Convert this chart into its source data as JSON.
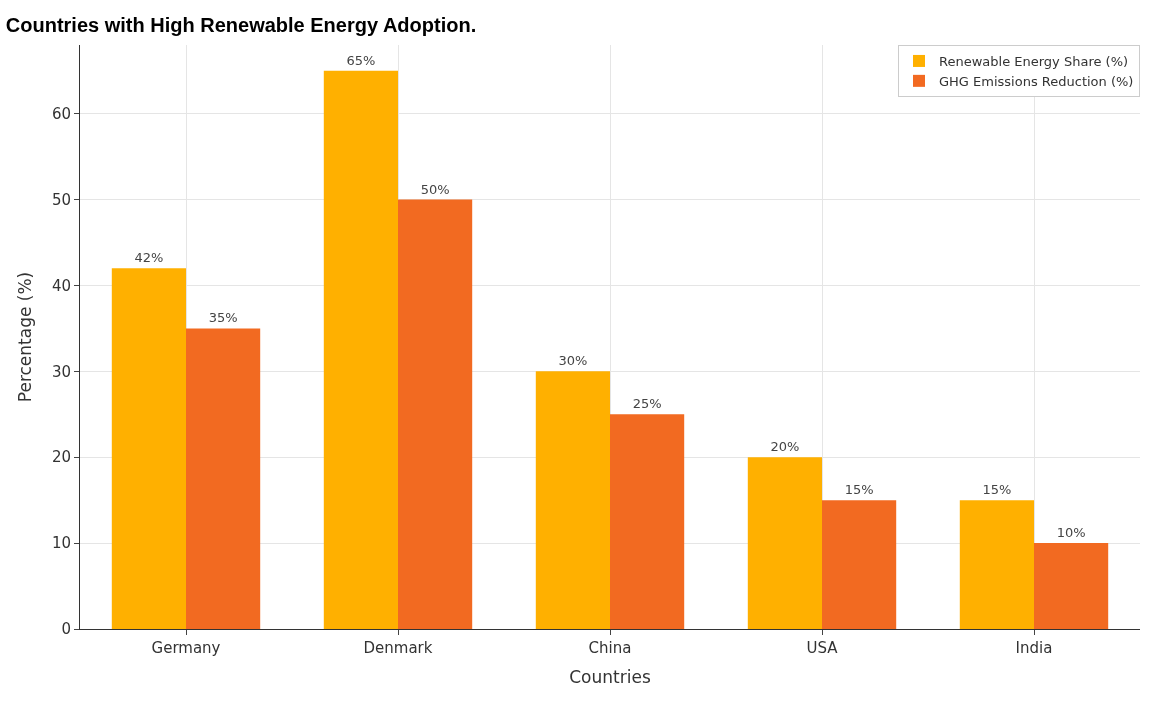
{
  "chart_data": {
    "type": "bar",
    "title": "Countries with High Renewable Energy Adoption.",
    "xlabel": "Countries",
    "ylabel": "Percentage (%)",
    "categories": [
      "Germany",
      "Denmark",
      "China",
      "USA",
      "India"
    ],
    "series": [
      {
        "name": "Renewable Energy Share (%)",
        "color": "#ffb000",
        "values": [
          42,
          65,
          30,
          20,
          15
        ],
        "value_labels": [
          "42%",
          "65%",
          "30%",
          "20%",
          "15%"
        ]
      },
      {
        "name": "GHG Emissions Reduction (%)",
        "color": "#f26a21",
        "values": [
          35,
          50,
          25,
          15,
          10
        ],
        "value_labels": [
          "35%",
          "50%",
          "25%",
          "15%",
          "10%"
        ]
      }
    ],
    "ylim": [
      0,
      68
    ],
    "yticks": [
      0,
      10,
      20,
      30,
      40,
      50,
      60
    ],
    "grid": true,
    "legend": "top right"
  }
}
